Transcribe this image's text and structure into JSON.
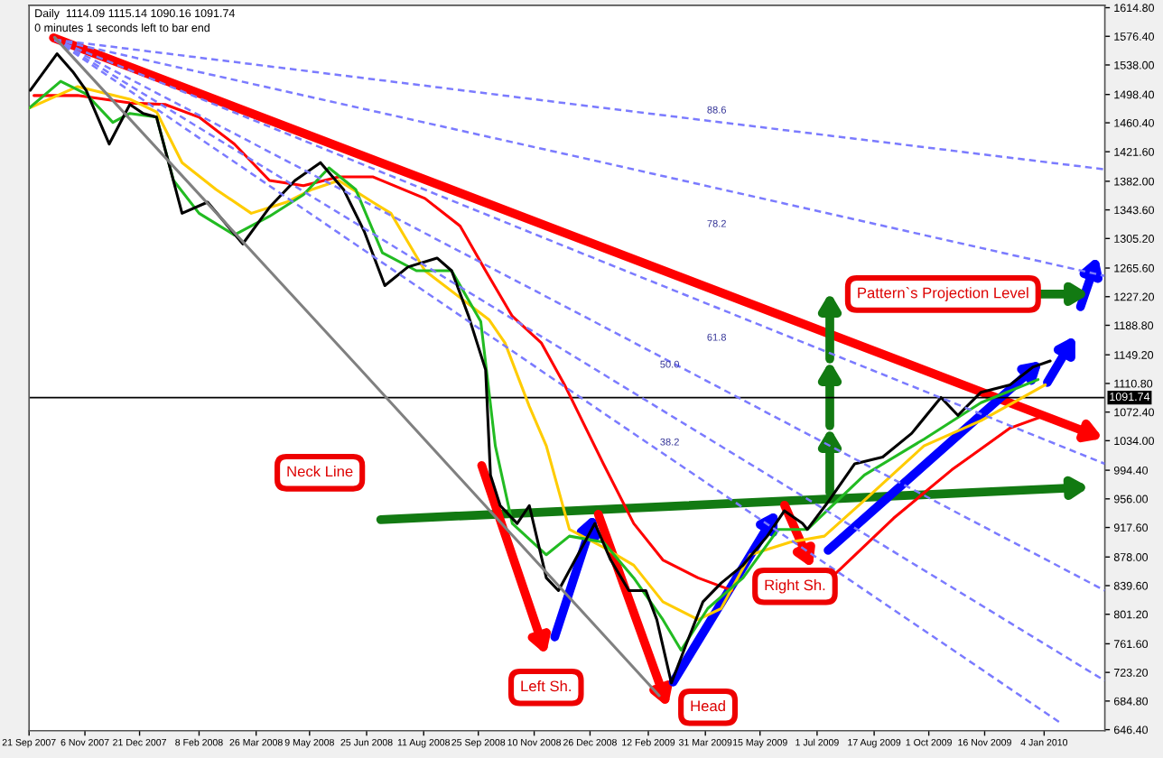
{
  "chart_data": {
    "type": "line",
    "title": "Daily  1114.09 1115.14 1090.16 1091.74",
    "subtitle": "0 minutes 1 seconds left to bar end",
    "xlim": [
      "2007-09-21",
      "2010-02-23"
    ],
    "ylim": [
      645,
      1618
    ],
    "xticks": [
      {
        "value": "2007-09-21",
        "label": "21 Sep 2007"
      },
      {
        "value": "2007-11-06",
        "label": "6 Nov 2007"
      },
      {
        "value": "2007-12-21",
        "label": "21 Dec 2007"
      },
      {
        "value": "2008-02-08",
        "label": "8 Feb 2008"
      },
      {
        "value": "2008-03-26",
        "label": "26 Mar 2008"
      },
      {
        "value": "2008-05-09",
        "label": "9 May 2008"
      },
      {
        "value": "2008-06-25",
        "label": "25 Jun 2008"
      },
      {
        "value": "2008-08-11",
        "label": "11 Aug 2008"
      },
      {
        "value": "2008-09-25",
        "label": "25 Sep 2008"
      },
      {
        "value": "2008-11-10",
        "label": "10 Nov 2008"
      },
      {
        "value": "2008-12-26",
        "label": "26 Dec 2008"
      },
      {
        "value": "2009-02-12",
        "label": "12 Feb 2009"
      },
      {
        "value": "2009-03-31",
        "label": "31 Mar 2009"
      },
      {
        "value": "2009-05-15",
        "label": "15 May 2009"
      },
      {
        "value": "2009-07-01",
        "label": "1 Jul 2009"
      },
      {
        "value": "2009-08-17",
        "label": "17 Aug 2009"
      },
      {
        "value": "2009-10-01",
        "label": "1 Oct 2009"
      },
      {
        "value": "2009-11-16",
        "label": "16 Nov 2009"
      },
      {
        "value": "2010-01-04",
        "label": "4 Jan 2010"
      }
    ],
    "yticks": [
      {
        "value": 1614.8,
        "label": "1614.80"
      },
      {
        "value": 1576.4,
        "label": "1576.40"
      },
      {
        "value": 1538,
        "label": "1538.00"
      },
      {
        "value": 1498.4,
        "label": "1498.40"
      },
      {
        "value": 1460.4,
        "label": "1460.40"
      },
      {
        "value": 1421.6,
        "label": "1421.60"
      },
      {
        "value": 1382,
        "label": "1382.00"
      },
      {
        "value": 1343.6,
        "label": "1343.60"
      },
      {
        "value": 1305.2,
        "label": "1305.20"
      },
      {
        "value": 1265.6,
        "label": "1265.60"
      },
      {
        "value": 1227.2,
        "label": "1227.20"
      },
      {
        "value": 1188.8,
        "label": "1188.80"
      },
      {
        "value": 1149.2,
        "label": "1149.20"
      },
      {
        "value": 1110.8,
        "label": "1110.80"
      },
      {
        "value": 1072.4,
        "label": "1072.40"
      },
      {
        "value": 1034,
        "label": "1034.00"
      },
      {
        "value": 994.4,
        "label": "994.40"
      },
      {
        "value": 956,
        "label": "956.00"
      },
      {
        "value": 917.6,
        "label": "917.60"
      },
      {
        "value": 878,
        "label": "878.00"
      },
      {
        "value": 839.6,
        "label": "839.60"
      },
      {
        "value": 801.2,
        "label": "801.20"
      },
      {
        "value": 761.6,
        "label": "761.60"
      },
      {
        "value": 723.2,
        "label": "723.20"
      },
      {
        "value": 684.8,
        "label": "684.80"
      },
      {
        "value": 646.4,
        "label": "646.40"
      }
    ],
    "grid": false,
    "legend": false,
    "series": [
      {
        "color": "#ff0000",
        "x": [
          "2007-09-25",
          "2007-10-31",
          "2007-12-13",
          "2008-01-11",
          "2008-02-08",
          "2008-03-08",
          "2008-04-06",
          "2008-05-04",
          "2008-06-02",
          "2008-06-30",
          "2008-08-12",
          "2008-09-10",
          "2008-10-01",
          "2008-10-23",
          "2008-11-16",
          "2008-12-05",
          "2009-01-06",
          "2009-01-31",
          "2009-02-24",
          "2009-03-25",
          "2009-04-22",
          "2009-05-30",
          "2009-07-17",
          "2009-09-02",
          "2009-10-20",
          "2009-12-07",
          "2010-01-05"
        ],
        "values": [
          1497,
          1497,
          1487,
          1485,
          1468,
          1432,
          1383,
          1376,
          1388,
          1388,
          1359,
          1322,
          1262,
          1201,
          1165,
          1109,
          1003,
          923,
          874,
          850,
          833,
          null,
          857,
          930,
          995,
          1051,
          1068
        ]
      },
      {
        "color": "#ffcc00",
        "x": [
          "2007-09-21",
          "2007-10-31",
          "2007-12-13",
          "2008-01-04",
          "2008-01-25",
          "2008-02-22",
          "2008-03-22",
          "2008-04-20",
          "2008-05-11",
          "2008-06-02",
          "2008-06-30",
          "2008-07-15",
          "2008-08-12",
          "2008-10-04",
          "2008-10-17",
          "2008-11-06",
          "2008-11-20",
          "2008-12-09",
          "2009-01-06",
          "2009-01-31",
          "2009-02-24",
          "2009-03-25",
          "2009-04-13",
          "2009-05-07",
          "2009-06-09",
          "2009-07-07",
          "2009-08-09",
          "2009-09-27",
          "2009-11-13",
          "2010-01-05"
        ],
        "values": [
          1480,
          1509,
          1492,
          1475,
          1407,
          1371,
          1339,
          1354,
          1371,
          1383,
          1354,
          1339,
          1262,
          1196,
          1165,
          1080,
          1027,
          915,
          891,
          867,
          818,
          794,
          809,
          881,
          898,
          906,
          954,
          1027,
          1061,
          1109
        ]
      },
      {
        "color": "#22bb22",
        "x": [
          "2007-09-21",
          "2007-10-17",
          "2007-11-07",
          "2007-11-29",
          "2007-12-13",
          "2008-01-04",
          "2008-01-18",
          "2008-02-08",
          "2008-03-08",
          "2008-04-06",
          "2008-05-04",
          "2008-05-25",
          "2008-06-16",
          "2008-07-08",
          "2008-08-05",
          "2008-09-03",
          "2008-09-27",
          "2008-10-09",
          "2008-10-23",
          "2008-11-20",
          "2008-12-09",
          "2009-01-06",
          "2009-01-31",
          "2009-02-24",
          "2009-03-11",
          "2009-04-02",
          "2009-05-01",
          "2009-05-30",
          "2009-06-23",
          "2009-08-09",
          "2009-09-27",
          "2009-11-13",
          "2009-12-30"
        ],
        "values": [
          1480,
          1516,
          1499,
          1461,
          1473,
          1468,
          1383,
          1339,
          1310,
          1335,
          1364,
          1400,
          1371,
          1286,
          1262,
          1262,
          1194,
          1027,
          923,
          881,
          906,
          898,
          850,
          794,
          753,
          809,
          850,
          915,
          915,
          988,
          1036,
          1085,
          1116
        ]
      },
      {
        "color": "#000000",
        "x": [
          "2007-09-22",
          "2007-10-14",
          "2007-10-27",
          "2007-11-07",
          "2007-11-26",
          "2007-12-13",
          "2007-12-24",
          "2008-01-04",
          "2008-01-25",
          "2008-02-15",
          "2008-03-15",
          "2008-04-06",
          "2008-04-27",
          "2008-05-18",
          "2008-06-06",
          "2008-06-23",
          "2008-07-10",
          "2008-07-29",
          "2008-08-22",
          "2008-09-03",
          "2008-09-17",
          "2008-10-01",
          "2008-10-05",
          "2008-10-13",
          "2008-10-27",
          "2008-11-06",
          "2008-11-20",
          "2008-11-30",
          "2008-12-16",
          "2008-12-30",
          "2009-01-12",
          "2009-01-27",
          "2009-02-10",
          "2009-02-19",
          "2009-03-03",
          "2009-03-15",
          "2009-03-29",
          "2009-04-13",
          "2009-05-01",
          "2009-05-21",
          "2009-06-04",
          "2009-06-19",
          "2009-06-23",
          "2009-07-11",
          "2009-08-01",
          "2009-08-24",
          "2009-09-17",
          "2009-10-11",
          "2009-10-25",
          "2009-11-13",
          "2009-12-07",
          "2009-12-26",
          "2010-01-09"
        ],
        "values": [
          1504,
          1553,
          1529,
          1504,
          1432,
          1485,
          1473,
          1468,
          1339,
          1354,
          1298,
          1347,
          1383,
          1407,
          1371,
          1315,
          1242,
          1267,
          1279,
          1262,
          1201,
          1129,
          988,
          947,
          923,
          947,
          850,
          833,
          881,
          923,
          874,
          833,
          833,
          794,
          709,
          760,
          818,
          843,
          867,
          906,
          940,
          923,
          915,
          954,
          1003,
          1012,
          1044,
          1092,
          1068,
          1099,
          1109,
          1133,
          1141
        ]
      },
      {
        "color": "#7b7bff",
        "line_style": "dashed",
        "x": [
          "2007-10-12",
          "2008-12-29",
          "2010-02-23"
        ],
        "values": [
          1572,
          1482,
          1398
        ]
      },
      {
        "color": "#7b7bff",
        "line_style": "dashed",
        "x": [
          "2007-10-12",
          "2008-12-29",
          "2010-02-23"
        ],
        "values": [
          1572,
          1410,
          1255
        ]
      },
      {
        "color": "#7b7bff",
        "line_style": "dashed",
        "x": [
          "2007-10-12",
          "2008-12-29",
          "2010-02-23"
        ],
        "values": [
          1572,
          1279,
          1003
        ]
      },
      {
        "color": "#7b7bff",
        "line_style": "dashed",
        "x": [
          "2007-10-12",
          "2008-12-29",
          "2010-02-23"
        ],
        "values": [
          1572,
          1194,
          833
        ]
      },
      {
        "color": "#7b7bff",
        "line_style": "dashed",
        "x": [
          "2007-10-12",
          "2008-12-29",
          "2010-02-23"
        ],
        "values": [
          1572,
          1131,
          712
        ]
      },
      {
        "color": "#7b7bff",
        "line_style": "dashed",
        "x": [
          "2007-10-12",
          "2008-12-29",
          "2010-01-17"
        ],
        "values": [
          1572,
          1080,
          656
        ]
      },
      {
        "color": "#808080",
        "x": [
          "2007-10-12",
          "2008-06-18",
          "2009-02-21"
        ],
        "values": [
          1575,
          1133,
          692
        ]
      }
    ],
    "ref_lines": [
      {
        "axis": "y",
        "value": 1091.74,
        "label": "1091.74",
        "color": "#000000"
      }
    ],
    "annotations": [
      "88.6",
      "78.2",
      "61.8",
      "50.0",
      "38.2",
      "Neck Line",
      "Left Sh.",
      "Head",
      "Right Sh.",
      "Pattern`s Projection Level"
    ]
  }
}
